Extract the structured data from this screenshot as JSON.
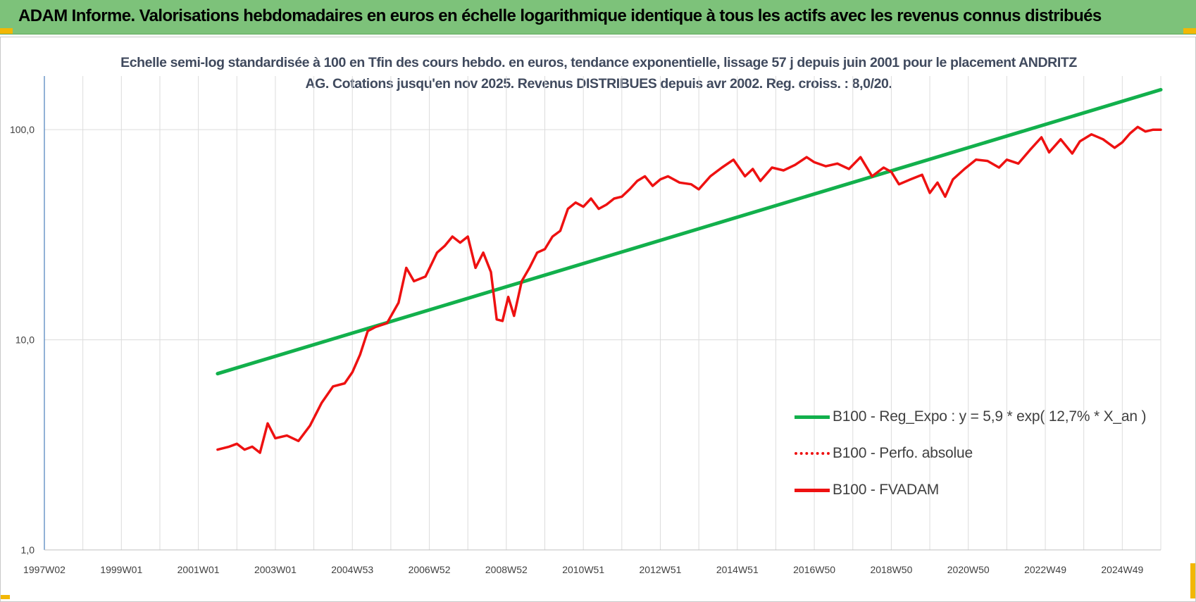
{
  "header": {
    "title": "ADAM Informe. Valorisations hebdomadaires en euros en échelle logarithmique identique à tous les actifs avec les revenus connus distribués",
    "background": "#7dc27a",
    "accent": "#f2b705"
  },
  "chart_data": {
    "type": "line",
    "title": "Echelle semi-log standardisée à 100 en Tfin des cours hebdo. en euros, tendance exponentielle, lissage 57 j depuis juin 2001 pour le placement ANDRITZ AG. Cotations jusqu'en nov 2025. Revenus DISTRIBUES depuis avr 2002. Reg. croiss. : 8,0/20.",
    "yscale": "log",
    "ylim": [
      1,
      180
    ],
    "y_ticks": [
      "1,0",
      "10,0",
      "100,0"
    ],
    "x_ticks": [
      "1997W02",
      "1999W01",
      "2001W01",
      "2003W01",
      "2004W53",
      "2006W52",
      "2008W52",
      "2010W51",
      "2012W51",
      "2014W51",
      "2016W50",
      "2018W50",
      "2020W50",
      "2022W49",
      "2024W49"
    ],
    "xlim": [
      1997.0,
      2026.0
    ],
    "grid": true,
    "legend_position": "bottom-right",
    "series": [
      {
        "name": "B100 - Reg_Expo : y = 5,9 * exp( 12,7% *  X_an )",
        "color": "#12b04c",
        "style": "solid",
        "x": [
          2001.5,
          2026.0
        ],
        "y": [
          6.9,
          155
        ]
      },
      {
        "name": "B100 - Perfo. absolue",
        "color": "#ee1111",
        "style": "dotted",
        "x": [],
        "y": []
      },
      {
        "name": "B100 - FVADAM",
        "color": "#ee1111",
        "style": "solid",
        "x": [
          2001.5,
          2001.8,
          2002.0,
          2002.2,
          2002.4,
          2002.6,
          2002.8,
          2003.0,
          2003.3,
          2003.6,
          2003.9,
          2004.2,
          2004.5,
          2004.8,
          2005.0,
          2005.2,
          2005.4,
          2005.6,
          2005.9,
          2006.2,
          2006.4,
          2006.6,
          2006.9,
          2007.2,
          2007.4,
          2007.6,
          2007.8,
          2008.0,
          2008.2,
          2008.4,
          2008.6,
          2008.75,
          2008.9,
          2009.05,
          2009.2,
          2009.4,
          2009.6,
          2009.8,
          2010.0,
          2010.2,
          2010.4,
          2010.6,
          2010.8,
          2011.0,
          2011.2,
          2011.4,
          2011.6,
          2011.8,
          2012.0,
          2012.2,
          2012.4,
          2012.6,
          2012.8,
          2013.0,
          2013.2,
          2013.5,
          2013.8,
          2014.0,
          2014.3,
          2014.6,
          2014.9,
          2015.2,
          2015.4,
          2015.6,
          2015.9,
          2016.2,
          2016.5,
          2016.8,
          2017.0,
          2017.3,
          2017.6,
          2017.9,
          2018.2,
          2018.5,
          2018.8,
          2019.0,
          2019.2,
          2019.5,
          2019.8,
          2020.0,
          2020.2,
          2020.4,
          2020.6,
          2020.9,
          2021.2,
          2021.5,
          2021.8,
          2022.0,
          2022.3,
          2022.6,
          2022.9,
          2023.1,
          2023.4,
          2023.7,
          2023.9,
          2024.2,
          2024.5,
          2024.8,
          2025.0,
          2025.2,
          2025.4,
          2025.6,
          2025.8,
          2026.0
        ],
        "y": [
          3.0,
          3.1,
          3.2,
          3.0,
          3.1,
          2.9,
          4.0,
          3.4,
          3.5,
          3.3,
          3.9,
          5.0,
          6.0,
          6.2,
          7.0,
          8.5,
          11.0,
          11.5,
          12.0,
          15.0,
          22.0,
          19.0,
          20.0,
          26.0,
          28.0,
          31.0,
          29.0,
          31.0,
          22.0,
          26.0,
          21.0,
          12.5,
          12.3,
          16.0,
          13.0,
          19.0,
          22.0,
          26.0,
          27.0,
          31.0,
          33.0,
          42.0,
          45.0,
          43.0,
          47.0,
          42.0,
          44.0,
          47.0,
          48.0,
          52.0,
          57.0,
          60.0,
          54.0,
          58.0,
          60.0,
          56.0,
          55.0,
          52.0,
          60.0,
          66.0,
          72.0,
          60.0,
          65.0,
          57.0,
          66.0,
          64.0,
          68.0,
          74.0,
          70.0,
          67.0,
          69.0,
          65.0,
          74.0,
          60.0,
          66.0,
          63.0,
          55.0,
          58.0,
          61.0,
          50.0,
          56.0,
          48.0,
          58.0,
          65.0,
          72.0,
          71.0,
          66.0,
          72.0,
          69.0,
          80.0,
          92.0,
          78.0,
          90.0,
          77.0,
          88.0,
          95.0,
          90.0,
          82.0,
          87.0,
          96.0,
          103.0,
          98.0,
          100.0,
          100.0
        ]
      }
    ]
  }
}
